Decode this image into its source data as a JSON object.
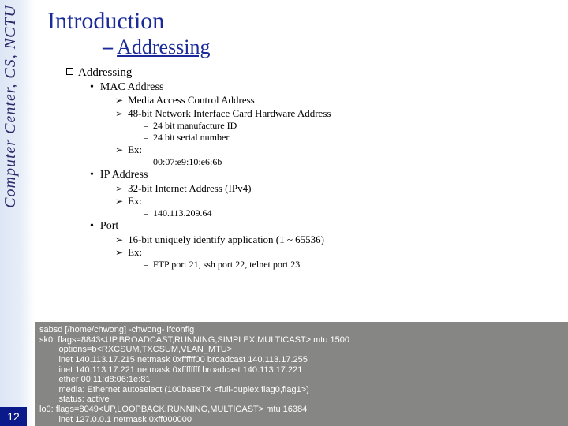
{
  "sidebar": {
    "org_text": "Computer Center, CS, NCTU",
    "text_color": "#2a2a6a",
    "gradient_from": "#dde6f5",
    "gradient_to": "#ffffff"
  },
  "page_number": "12",
  "page_number_bg": "#0a1a8a",
  "title": {
    "main": "Introduction",
    "sub_dash": "–",
    "sub_text": "Addressing",
    "color": "#1a2a9a"
  },
  "outline": {
    "heading": "Addressing",
    "items": [
      {
        "label": "MAC Address",
        "children": [
          {
            "text": "Media Access Control Address"
          },
          {
            "text": "48-bit Network Interface Card Hardware Address",
            "sub": [
              "24 bit manufacture ID",
              "24 bit serial number"
            ]
          },
          {
            "text": "Ex:",
            "sub": [
              "00:07:e9:10:e6:6b"
            ]
          }
        ]
      },
      {
        "label": "IP Address",
        "children": [
          {
            "text": "32-bit Internet Address (IPv4)"
          },
          {
            "text": "Ex:",
            "sub": [
              "140.113.209.64"
            ]
          }
        ]
      },
      {
        "label": "Port",
        "children": [
          {
            "text": "16-bit uniquely identify application (1 ~ 65536)"
          },
          {
            "text": "Ex:",
            "sub": [
              "FTP port 21, ssh port 22, telnet port 23"
            ]
          }
        ]
      }
    ]
  },
  "terminal": {
    "bg": "#868785",
    "fg": "#ffffff",
    "lines": [
      "sabsd [/home/chwong] -chwong- ifconfig",
      "sk0: flags=8843<UP,BROADCAST,RUNNING,SIMPLEX,MULTICAST> mtu 1500",
      "        options=b<RXCSUM,TXCSUM,VLAN_MTU>",
      "        inet 140.113.17.215 netmask 0xffffff00 broadcast 140.113.17.255",
      "        inet 140.113.17.221 netmask 0xffffffff broadcast 140.113.17.221",
      "        ether 00:11:d8:06:1e:81",
      "        media: Ethernet autoselect (100baseTX <full-duplex,flag0,flag1>)",
      "        status: active",
      "lo0: flags=8049<UP,LOOPBACK,RUNNING,MULTICAST> mtu 16384",
      "        inet 127.0.0.1 netmask 0xff000000"
    ]
  }
}
